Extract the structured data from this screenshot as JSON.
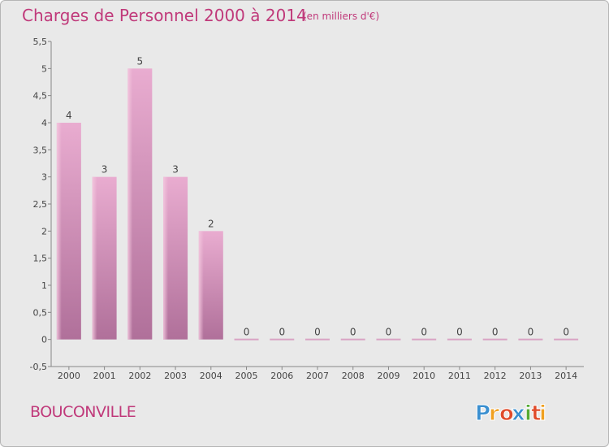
{
  "chart_data": {
    "type": "bar",
    "title": "Charges de Personnel 2000 à 2014",
    "subtitle": "(en milliers d'€)",
    "categories": [
      "2000",
      "2001",
      "2002",
      "2003",
      "2004",
      "2005",
      "2006",
      "2007",
      "2008",
      "2009",
      "2010",
      "2011",
      "2012",
      "2013",
      "2014"
    ],
    "values": [
      4,
      3,
      5,
      3,
      2,
      0,
      0,
      0,
      0,
      0,
      0,
      0,
      0,
      0,
      0
    ],
    "data_labels": [
      "4",
      "3",
      "5",
      "3",
      "2",
      "0",
      "0",
      "0",
      "0",
      "0",
      "0",
      "0",
      "0",
      "0",
      "0"
    ],
    "ylim": [
      -0.5,
      5.5
    ],
    "yticks": [
      -0.5,
      0,
      0.5,
      1,
      1.5,
      2,
      2.5,
      3,
      3.5,
      4,
      4.5,
      5,
      5.5
    ],
    "ytick_labels": [
      "-0,5",
      "0",
      "0,5",
      "1",
      "1,5",
      "2",
      "2,5",
      "3",
      "3,5",
      "4",
      "4,5",
      "5",
      "5,5"
    ],
    "grid": false,
    "bar_color": "#d88fb8"
  },
  "footer": {
    "commune": "BOUCONVILLE",
    "logo_text": "Proxiti",
    "logo_letters": [
      "P",
      "r",
      "o",
      "x",
      "i",
      "t",
      "i"
    ],
    "logo_colors": [
      "#3a8fd0",
      "#f0a020",
      "#e04b2b",
      "#3a8fd0",
      "#55aa33",
      "#e04b2b",
      "#f0a020"
    ]
  }
}
